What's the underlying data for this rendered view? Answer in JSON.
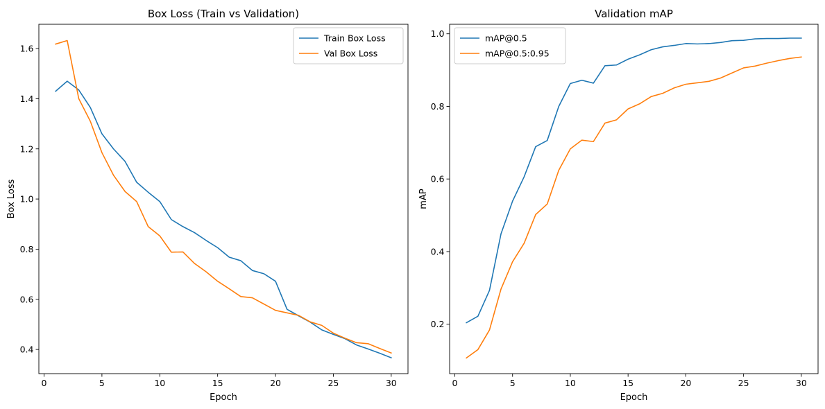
{
  "chart_data": [
    {
      "type": "line",
      "title": "Box Loss (Train vs Validation)",
      "xlabel": "Epoch",
      "ylabel": "Box Loss",
      "xlim": [
        -0.45,
        31.45
      ],
      "ylim": [
        0.3035,
        1.697
      ],
      "xticks": [
        0,
        5,
        10,
        15,
        20,
        25,
        30
      ],
      "yticks": [
        0.4,
        0.6,
        0.8,
        1.0,
        1.2,
        1.4,
        1.6
      ],
      "ytick_labels": [
        "0.4",
        "0.6",
        "0.8",
        "1.0",
        "1.2",
        "1.4",
        "1.6"
      ],
      "grid": false,
      "legend_position": "top-right",
      "x": [
        1,
        2,
        3,
        4,
        5,
        6,
        7,
        8,
        9,
        10,
        11,
        12,
        13,
        14,
        15,
        16,
        17,
        18,
        19,
        20,
        21,
        22,
        23,
        24,
        25,
        26,
        27,
        28,
        29,
        30
      ],
      "series": [
        {
          "name": "Train Box Loss",
          "color": "#1f77b4",
          "values": [
            1.43,
            1.47,
            1.435,
            1.365,
            1.26,
            1.2,
            1.15,
            1.067,
            1.027,
            0.99,
            0.918,
            0.89,
            0.866,
            0.835,
            0.806,
            0.768,
            0.754,
            0.715,
            0.702,
            0.672,
            0.56,
            0.534,
            0.509,
            0.478,
            0.46,
            0.443,
            0.418,
            0.402,
            0.385,
            0.367
          ]
        },
        {
          "name": "Val Box Loss",
          "color": "#ff7f0e",
          "values": [
            1.618,
            1.632,
            1.4,
            1.31,
            1.185,
            1.095,
            1.03,
            0.99,
            0.89,
            0.853,
            0.788,
            0.789,
            0.743,
            0.71,
            0.672,
            0.642,
            0.611,
            0.606,
            0.581,
            0.556,
            0.546,
            0.536,
            0.51,
            0.496,
            0.465,
            0.445,
            0.427,
            0.423,
            0.404,
            0.386
          ]
        }
      ]
    },
    {
      "type": "line",
      "title": "Validation mAP",
      "xlabel": "Epoch",
      "ylabel": "mAP",
      "xlim": [
        -0.45,
        31.45
      ],
      "ylim": [
        0.0638,
        1.0262
      ],
      "xticks": [
        0,
        5,
        10,
        15,
        20,
        25,
        30
      ],
      "yticks": [
        0.2,
        0.4,
        0.6,
        0.8,
        1.0
      ],
      "ytick_labels": [
        "0.2",
        "0.4",
        "0.6",
        "0.8",
        "1.0"
      ],
      "grid": false,
      "legend_position": "top-left",
      "x": [
        1,
        2,
        3,
        4,
        5,
        6,
        7,
        8,
        9,
        10,
        11,
        12,
        13,
        14,
        15,
        16,
        17,
        18,
        19,
        20,
        21,
        22,
        23,
        24,
        25,
        26,
        27,
        28,
        29,
        30
      ],
      "series": [
        {
          "name": "mAP@0.5",
          "color": "#1f77b4",
          "values": [
            0.204,
            0.222,
            0.293,
            0.449,
            0.539,
            0.606,
            0.689,
            0.706,
            0.8,
            0.863,
            0.872,
            0.864,
            0.912,
            0.914,
            0.93,
            0.942,
            0.956,
            0.964,
            0.968,
            0.973,
            0.972,
            0.973,
            0.976,
            0.981,
            0.982,
            0.986,
            0.987,
            0.987,
            0.988,
            0.988
          ]
        },
        {
          "name": "mAP@0.5:0.95",
          "color": "#ff7f0e",
          "values": [
            0.107,
            0.13,
            0.184,
            0.297,
            0.372,
            0.423,
            0.502,
            0.531,
            0.624,
            0.683,
            0.707,
            0.703,
            0.754,
            0.763,
            0.793,
            0.807,
            0.827,
            0.836,
            0.851,
            0.861,
            0.865,
            0.869,
            0.878,
            0.892,
            0.906,
            0.911,
            0.919,
            0.926,
            0.932,
            0.936
          ]
        }
      ]
    }
  ]
}
